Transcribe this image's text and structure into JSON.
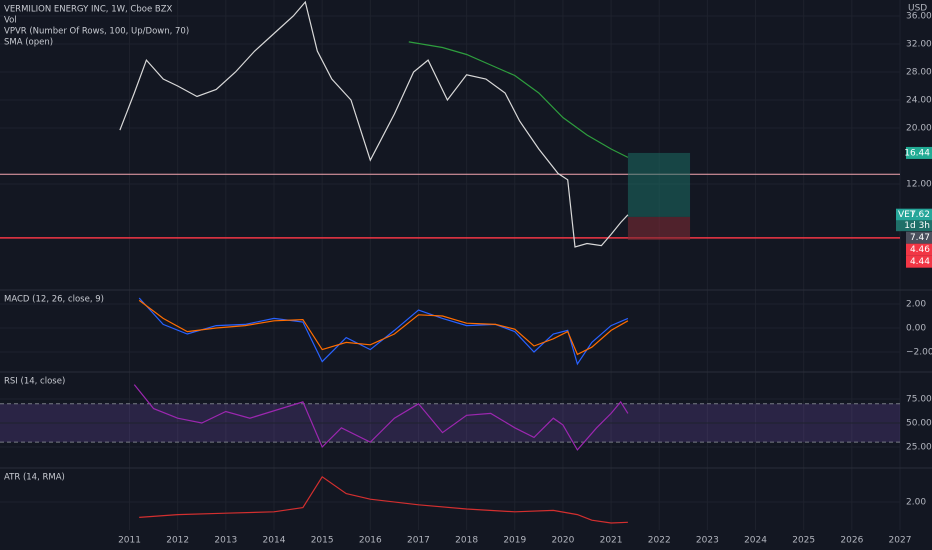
{
  "chart_data": [
    {
      "type": "line",
      "title": "VERMILION ENERGY INC, 1W, Cboe BZX",
      "indicators": [
        "Vol",
        "VPVR (Number Of Rows, 100, Up/Down, 70)"
      ],
      "currency": "USD",
      "ylim": [
        -3.14,
        38.29
      ],
      "yticks": [
        {
          "value": 36,
          "label": "36.00"
        },
        {
          "value": 32,
          "label": "32.00"
        },
        {
          "value": 28,
          "label": "28.00"
        },
        {
          "value": 24,
          "label": "24.00"
        },
        {
          "value": 20,
          "label": "20.00"
        },
        {
          "value": 12,
          "label": "12.00"
        }
      ],
      "grid": true,
      "series": [
        {
          "name": "VERMILION ENERGY INC, 1W, Cboe BZX",
          "color": "#d9d9d9",
          "x": [
            2010.8,
            2011.1,
            2011.35,
            2011.7,
            2012.0,
            2012.4,
            2012.8,
            2013.2,
            2013.6,
            2014.0,
            2014.4,
            2014.65,
            2014.9,
            2015.2,
            2015.6,
            2016.0,
            2016.5,
            2016.9,
            2017.2,
            2017.6,
            2018.0,
            2018.4,
            2018.8,
            2019.1,
            2019.5,
            2019.9,
            2020.1,
            2020.25,
            2020.5,
            2020.8,
            2021.0,
            2021.2,
            2021.35
          ],
          "values": [
            19.7,
            25,
            29.7,
            27,
            26,
            24.5,
            25.5,
            28,
            31,
            33.5,
            36,
            38,
            31,
            27,
            24,
            15.4,
            22,
            28,
            29.7,
            24,
            27.6,
            27,
            25,
            21,
            17,
            13.5,
            12.6,
            3,
            3.5,
            3.2,
            4.8,
            6.5,
            7.6
          ]
        },
        {
          "name": "SMA (open)",
          "color": "#2e9e3e",
          "x": [
            2016.8,
            2017.5,
            2018.0,
            2018.5,
            2019.0,
            2019.5,
            2020.0,
            2020.5,
            2021.0,
            2021.35
          ],
          "values": [
            32.3,
            31.5,
            30.5,
            29,
            27.5,
            25,
            21.5,
            19,
            17,
            15.8
          ]
        }
      ],
      "hlines": [
        {
          "value": 13.4,
          "color": "#f4a6b0"
        },
        {
          "value": 4.3,
          "color": "#f23645"
        }
      ],
      "position": {
        "x": [
          2021.35,
          2022.64
        ],
        "target": 16.44,
        "entry": 7.3,
        "stop": 4.0
      },
      "price_labels": [
        {
          "value": 16.44,
          "color": "#22ab94"
        },
        {
          "text": "VET",
          "value": 7.62,
          "color": "#26a69a",
          "countdown": "1d 3h"
        },
        {
          "value": 7.47,
          "color": "#4a4f5c"
        },
        {
          "value": 4.46,
          "color": "#f23645"
        },
        {
          "value": 4.44,
          "color": "#f23645"
        }
      ]
    },
    {
      "type": "line",
      "title": "MACD (12, 26, close, 9)",
      "ylim": [
        -3.67,
        3.17
      ],
      "yticks": [
        {
          "value": 2,
          "label": "2.00"
        },
        {
          "value": 0,
          "label": "0.00"
        },
        {
          "value": -2,
          "label": "−2.00"
        }
      ],
      "grid": true,
      "series": [
        {
          "color": "#2962ff",
          "x": [
            2011.2,
            2011.7,
            2012.2,
            2012.8,
            2013.4,
            2014.0,
            2014.6,
            2015.0,
            2015.5,
            2016.0,
            2016.5,
            2017.0,
            2017.5,
            2018.0,
            2018.6,
            2019.0,
            2019.4,
            2019.8,
            2020.1,
            2020.3,
            2020.6,
            2021.0,
            2021.35
          ],
          "values": [
            2.5,
            0.3,
            -0.5,
            0.2,
            0.3,
            0.8,
            0.5,
            -2.8,
            -0.8,
            -1.8,
            -0.2,
            1.5,
            0.8,
            0.2,
            0.3,
            -0.3,
            -2.0,
            -0.5,
            -0.2,
            -3.0,
            -1.2,
            0.2,
            0.8
          ]
        },
        {
          "color": "#ff6d00",
          "x": [
            2011.2,
            2011.7,
            2012.2,
            2012.8,
            2013.4,
            2014.0,
            2014.6,
            2015.0,
            2015.5,
            2016.0,
            2016.5,
            2017.0,
            2017.5,
            2018.0,
            2018.6,
            2019.0,
            2019.4,
            2019.8,
            2020.1,
            2020.3,
            2020.6,
            2021.0,
            2021.35
          ],
          "values": [
            2.3,
            0.8,
            -0.3,
            0,
            0.2,
            0.6,
            0.7,
            -1.8,
            -1.2,
            -1.4,
            -0.5,
            1.1,
            1,
            0.4,
            0.3,
            -0.1,
            -1.5,
            -0.9,
            -0.3,
            -2.2,
            -1.6,
            -0.2,
            0.6
          ]
        }
      ]
    },
    {
      "type": "line",
      "title": "RSI (14, close)",
      "ylim": [
        3.1,
        103.1
      ],
      "yticks": [
        {
          "value": 75,
          "label": "75.00"
        },
        {
          "value": 50,
          "label": "50.00"
        },
        {
          "value": 25,
          "label": "25.00"
        }
      ],
      "grid": true,
      "band": [
        30,
        70
      ],
      "band_color": "#7e57c2",
      "series": [
        {
          "color": "#9c27b0",
          "x": [
            2011.1,
            2011.5,
            2012.0,
            2012.5,
            2013.0,
            2013.5,
            2014.6,
            2015.0,
            2015.4,
            2016.0,
            2016.5,
            2017.0,
            2017.5,
            2018.0,
            2018.5,
            2019.0,
            2019.4,
            2019.8,
            2020.0,
            2020.3,
            2020.7,
            2021.0,
            2021.2,
            2021.35
          ],
          "values": [
            90,
            65,
            55,
            50,
            62,
            55,
            72,
            25,
            45,
            30,
            55,
            70,
            40,
            58,
            60,
            45,
            35,
            55,
            48,
            22,
            45,
            60,
            72,
            60
          ]
        }
      ]
    },
    {
      "type": "line",
      "title": "ATR (14, RMA)",
      "ylim": [
        0,
        4.43
      ],
      "yticks": [
        {
          "value": 2,
          "label": "2.00"
        }
      ],
      "grid": true,
      "xlim": [
        2008.31,
        2027
      ],
      "xticks": [
        2011,
        2012,
        2013,
        2014,
        2015,
        2016,
        2017,
        2018,
        2019,
        2020,
        2021,
        2022,
        2023,
        2024,
        2025,
        2026,
        2027
      ],
      "series": [
        {
          "color": "#d32f2f",
          "x": [
            2011.2,
            2012.0,
            2013.0,
            2014.0,
            2014.6,
            2015.0,
            2015.5,
            2016.0,
            2017.0,
            2018.0,
            2019.0,
            2019.8,
            2020.3,
            2020.6,
            2021.0,
            2021.35
          ],
          "values": [
            0.9,
            1.1,
            1.2,
            1.3,
            1.6,
            3.8,
            2.6,
            2.2,
            1.8,
            1.5,
            1.3,
            1.4,
            1.1,
            0.7,
            0.5,
            0.55
          ]
        }
      ]
    }
  ]
}
